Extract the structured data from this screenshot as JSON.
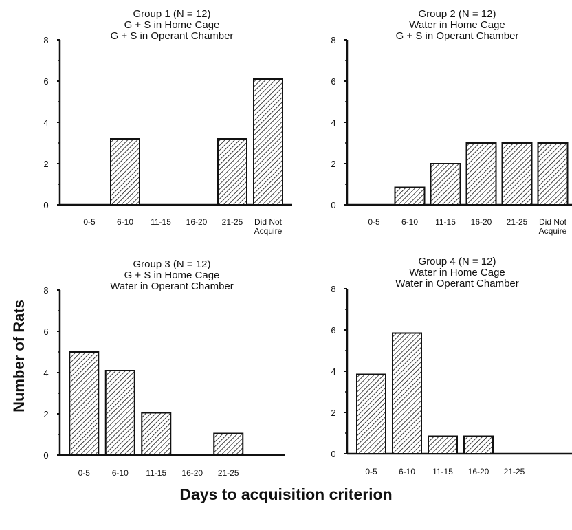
{
  "figure": {
    "ylabel": "Number of Rats",
    "xlabel": "Days to acquisition criterion"
  },
  "chart_data": [
    {
      "type": "bar",
      "title": [
        "Group 1 (N = 12)",
        "G + S in Home Cage",
        "G + S in Operant Chamber"
      ],
      "categories": [
        "0-5",
        "6-10",
        "11-15",
        "16-20",
        "21-25",
        "Did Not Acquire"
      ],
      "values": [
        0,
        3.2,
        0,
        0,
        3.2,
        6.1
      ],
      "yticks": [
        0,
        2,
        4,
        6,
        8
      ],
      "ylim": [
        0,
        8
      ],
      "bar_fill": "diagonal-hatch",
      "grid": false
    },
    {
      "type": "bar",
      "title": [
        "Group 2 (N = 12)",
        "Water in Home Cage",
        "G + S in Operant Chamber"
      ],
      "categories": [
        "0-5",
        "6-10",
        "11-15",
        "16-20",
        "21-25",
        "Did Not Acquire"
      ],
      "values": [
        0,
        0.85,
        2.0,
        3.0,
        3.0,
        3.0
      ],
      "yticks": [
        0,
        2,
        4,
        6,
        8
      ],
      "ylim": [
        0,
        8
      ],
      "bar_fill": "diagonal-hatch",
      "grid": false
    },
    {
      "type": "bar",
      "title": [
        "Group 3 (N = 12)",
        "G + S in Home Cage",
        "Water in Operant Chamber"
      ],
      "categories": [
        "0-5",
        "6-10",
        "11-15",
        "16-20",
        "21-25"
      ],
      "values": [
        5.0,
        4.1,
        2.05,
        0,
        1.05
      ],
      "yticks": [
        0,
        2,
        4,
        6,
        8
      ],
      "ylim": [
        0,
        8
      ],
      "bar_fill": "diagonal-hatch",
      "grid": false
    },
    {
      "type": "bar",
      "title": [
        "Group 4 (N = 12)",
        "Water in Home Cage",
        "Water in Operant Chamber"
      ],
      "categories": [
        "0-5",
        "6-10",
        "11-15",
        "16-20",
        "21-25"
      ],
      "values": [
        3.85,
        5.85,
        0.85,
        0.85,
        0
      ],
      "yticks": [
        0,
        2,
        4,
        6,
        8
      ],
      "ylim": [
        0,
        8
      ],
      "bar_fill": "diagonal-hatch",
      "grid": false
    }
  ]
}
